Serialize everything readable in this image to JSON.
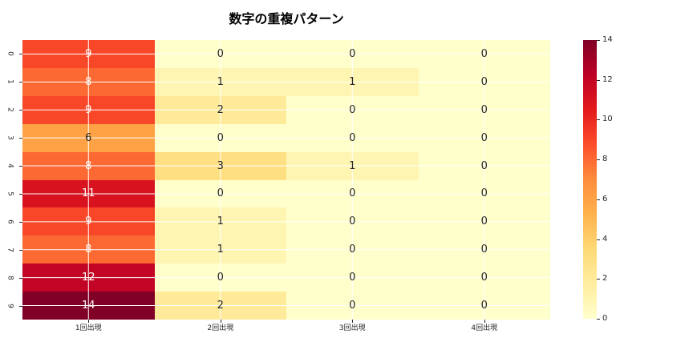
{
  "chart_data": {
    "type": "heatmap",
    "title": "数字の重複パターン",
    "row_labels": [
      "0",
      "1",
      "2",
      "3",
      "4",
      "5",
      "6",
      "7",
      "8",
      "9"
    ],
    "column_labels": [
      "1回出現",
      "2回出現",
      "3回出現",
      "4回出現"
    ],
    "matrix": [
      [
        9,
        0,
        0,
        0
      ],
      [
        8,
        1,
        1,
        0
      ],
      [
        9,
        2,
        0,
        0
      ],
      [
        6,
        0,
        0,
        0
      ],
      [
        8,
        3,
        1,
        0
      ],
      [
        11,
        0,
        0,
        0
      ],
      [
        9,
        1,
        0,
        0
      ],
      [
        8,
        1,
        0,
        0
      ],
      [
        12,
        0,
        0,
        0
      ],
      [
        14,
        2,
        0,
        0
      ]
    ],
    "vmin": 0,
    "vmax": 14,
    "colorbar_ticks": [
      0,
      2,
      4,
      6,
      8,
      10,
      12,
      14
    ],
    "colormap_name": "YlOrRd",
    "colormap_stops": [
      "#ffffcc",
      "#ffeda0",
      "#fed976",
      "#feb24c",
      "#fd8d3c",
      "#fc4e2a",
      "#e31a1c",
      "#bd0026",
      "#800026"
    ],
    "grid_color": "#ffffff",
    "annotation_dark_text": "#262626",
    "annotation_light_text": "#ffffff",
    "legend_position": "right"
  }
}
